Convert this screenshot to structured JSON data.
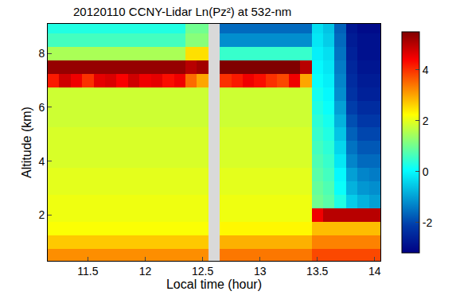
{
  "chart_data": {
    "type": "heatmap",
    "title": "20120110 CCNY-Lidar Ln(Pz²) at 532-nm",
    "x_label": "Local time (hour)",
    "y_label": "Altitude (km)",
    "x": [
      11.2,
      11.3,
      11.4,
      11.5,
      11.6,
      11.7,
      11.8,
      11.9,
      12.0,
      12.1,
      12.2,
      12.3,
      12.4,
      12.5,
      12.6,
      12.7,
      12.8,
      12.9,
      13.0,
      13.1,
      13.2,
      13.3,
      13.4,
      13.5,
      13.6,
      13.7,
      13.8,
      13.9,
      14.0
    ],
    "y": [
      0.5,
      1.0,
      1.5,
      2.0,
      2.5,
      3.0,
      3.5,
      4.0,
      4.5,
      5.0,
      5.5,
      6.0,
      6.5,
      7.0,
      7.5,
      8.0,
      8.5,
      9.0
    ],
    "z": [
      [
        3.2,
        3.2,
        3.2,
        3.2,
        3.2,
        3.2,
        3.2,
        3.2,
        3.2,
        3.2,
        3.2,
        3.2,
        3.2,
        3.2,
        null,
        3.4,
        3.4,
        3.4,
        3.4,
        3.4,
        3.4,
        3.4,
        3.4,
        3.8,
        3.8,
        3.8,
        3.8,
        3.8,
        3.8
      ],
      [
        2.7,
        2.7,
        2.7,
        2.7,
        2.7,
        2.7,
        2.7,
        2.7,
        2.7,
        2.7,
        2.7,
        2.7,
        2.7,
        2.7,
        null,
        2.9,
        2.9,
        2.9,
        2.9,
        2.9,
        2.9,
        2.9,
        2.9,
        3.3,
        3.3,
        3.3,
        3.3,
        3.3,
        3.3
      ],
      [
        2.2,
        2.2,
        2.2,
        2.2,
        2.2,
        2.2,
        2.2,
        2.2,
        2.2,
        2.2,
        2.2,
        2.2,
        2.2,
        2.2,
        null,
        2.3,
        2.3,
        2.3,
        2.3,
        2.3,
        2.3,
        2.3,
        2.3,
        2.8,
        2.8,
        2.8,
        2.8,
        2.8,
        2.8
      ],
      [
        2.1,
        2.1,
        2.1,
        2.1,
        2.1,
        2.1,
        2.1,
        2.1,
        2.1,
        2.1,
        2.1,
        2.1,
        2.1,
        2.1,
        null,
        2.1,
        2.1,
        2.1,
        2.1,
        2.1,
        2.1,
        2.1,
        2.1,
        4.5,
        5.0,
        5.0,
        5.0,
        5.0,
        5.0
      ],
      [
        2.1,
        2.1,
        2.1,
        2.1,
        2.1,
        2.1,
        2.1,
        2.1,
        2.1,
        2.1,
        2.1,
        2.1,
        2.1,
        2.1,
        null,
        2.1,
        2.1,
        2.1,
        2.1,
        2.1,
        2.1,
        2.1,
        2.1,
        1.0,
        0.8,
        0.3,
        -0.5,
        -0.8,
        -1.0
      ],
      [
        2.0,
        2.0,
        2.0,
        2.0,
        2.0,
        2.0,
        2.0,
        2.0,
        2.0,
        2.0,
        2.0,
        2.0,
        2.0,
        2.0,
        null,
        2.0,
        2.0,
        2.0,
        2.0,
        2.0,
        2.0,
        2.0,
        2.0,
        0.9,
        0.7,
        0.1,
        -0.8,
        -1.1,
        -1.2
      ],
      [
        2.0,
        2.0,
        2.0,
        2.0,
        2.0,
        2.0,
        2.0,
        2.0,
        2.0,
        2.0,
        2.0,
        2.0,
        2.0,
        2.0,
        null,
        2.0,
        2.0,
        2.0,
        2.0,
        2.0,
        2.0,
        2.0,
        2.0,
        0.8,
        0.6,
        0.0,
        -1.0,
        -1.3,
        -1.4
      ],
      [
        1.9,
        1.9,
        1.9,
        1.9,
        1.9,
        1.9,
        1.9,
        1.9,
        1.9,
        1.9,
        1.9,
        1.9,
        1.9,
        1.9,
        null,
        1.9,
        1.9,
        1.9,
        1.9,
        1.9,
        1.9,
        1.9,
        1.9,
        0.7,
        0.5,
        -0.2,
        -1.3,
        -1.6,
        -1.6
      ],
      [
        1.9,
        1.9,
        1.9,
        1.9,
        1.9,
        1.9,
        1.9,
        1.9,
        1.9,
        1.9,
        1.9,
        1.9,
        1.9,
        1.9,
        null,
        1.9,
        1.9,
        1.9,
        1.9,
        1.9,
        1.9,
        1.9,
        1.9,
        0.6,
        0.4,
        -0.4,
        -1.5,
        -1.8,
        -1.8
      ],
      [
        1.9,
        1.9,
        1.9,
        1.9,
        1.9,
        1.9,
        1.9,
        1.9,
        1.9,
        1.9,
        1.9,
        1.9,
        1.9,
        1.9,
        null,
        1.9,
        1.9,
        1.9,
        1.9,
        1.9,
        1.9,
        1.9,
        1.9,
        0.5,
        0.3,
        -0.6,
        -1.7,
        -2.0,
        -2.0
      ],
      [
        1.8,
        1.8,
        1.8,
        1.8,
        1.8,
        1.8,
        1.8,
        1.8,
        1.8,
        1.8,
        1.8,
        1.8,
        1.8,
        1.8,
        null,
        1.8,
        1.8,
        1.8,
        1.8,
        1.8,
        1.8,
        1.8,
        1.8,
        0.4,
        0.2,
        -0.8,
        -1.9,
        -2.2,
        -2.2
      ],
      [
        1.8,
        1.8,
        1.8,
        1.8,
        1.8,
        1.8,
        1.8,
        1.8,
        1.8,
        1.8,
        1.8,
        1.8,
        1.8,
        1.8,
        null,
        1.8,
        1.8,
        1.8,
        1.8,
        1.8,
        1.8,
        1.8,
        1.8,
        0.3,
        0.1,
        -1.0,
        -2.1,
        -2.4,
        -2.4
      ],
      [
        1.8,
        1.8,
        1.8,
        1.8,
        1.8,
        1.8,
        1.8,
        1.8,
        1.8,
        1.8,
        1.8,
        1.8,
        1.8,
        1.8,
        null,
        1.8,
        1.8,
        1.8,
        1.8,
        1.8,
        1.8,
        1.8,
        1.8,
        0.2,
        0.0,
        -1.2,
        -2.3,
        -2.6,
        -2.6
      ],
      [
        4.2,
        4.8,
        4.5,
        4.0,
        4.6,
        4.7,
        4.4,
        4.8,
        4.5,
        4.6,
        4.3,
        4.5,
        3.5,
        3.0,
        null,
        4.0,
        4.2,
        4.5,
        4.3,
        4.0,
        3.8,
        4.5,
        3.0,
        0.1,
        -0.1,
        -1.3,
        -2.4,
        -2.7,
        -2.7
      ],
      [
        5.3,
        5.3,
        5.3,
        5.3,
        5.3,
        5.3,
        5.3,
        5.3,
        5.3,
        5.3,
        5.3,
        5.3,
        5.0,
        5.2,
        null,
        5.5,
        5.5,
        5.5,
        5.5,
        5.5,
        5.5,
        5.5,
        5.0,
        0.0,
        -0.2,
        -1.4,
        -2.5,
        -2.8,
        -2.8
      ],
      [
        1.5,
        1.5,
        1.5,
        1.5,
        1.5,
        1.5,
        1.5,
        1.5,
        1.5,
        1.5,
        1.5,
        1.5,
        2.5,
        2.5,
        null,
        0.5,
        0.5,
        0.5,
        0.5,
        0.5,
        0.5,
        0.5,
        0.5,
        -0.1,
        -0.3,
        -1.5,
        -2.6,
        -2.9,
        -2.9
      ],
      [
        0.6,
        0.6,
        0.6,
        0.6,
        0.6,
        0.6,
        0.6,
        0.6,
        0.6,
        0.6,
        0.6,
        0.6,
        1.2,
        1.2,
        null,
        -1.2,
        -1.2,
        -1.2,
        -1.2,
        -1.2,
        -1.2,
        -1.2,
        -1.2,
        -0.2,
        -0.5,
        -1.6,
        -2.7,
        -2.9,
        -2.9
      ],
      [
        0.3,
        0.3,
        0.3,
        0.3,
        0.3,
        0.3,
        0.3,
        0.3,
        0.3,
        0.3,
        0.3,
        0.3,
        1.0,
        1.0,
        null,
        -1.6,
        -1.6,
        -1.6,
        -1.6,
        -1.6,
        -1.6,
        -1.6,
        -1.6,
        -0.3,
        -0.6,
        -1.7,
        -2.8,
        -3.0,
        -3.0
      ]
    ],
    "xlim": [
      11.15,
      14.05
    ],
    "xticks": [
      11.5,
      12,
      12.5,
      13,
      13.5,
      14
    ],
    "ylim": [
      0.3,
      9.1
    ],
    "yticks": [
      2,
      4,
      6,
      8
    ],
    "colorbar": {
      "range": [
        -3.2,
        5.5
      ],
      "ticks": [
        -2,
        0,
        2,
        4
      ]
    }
  }
}
